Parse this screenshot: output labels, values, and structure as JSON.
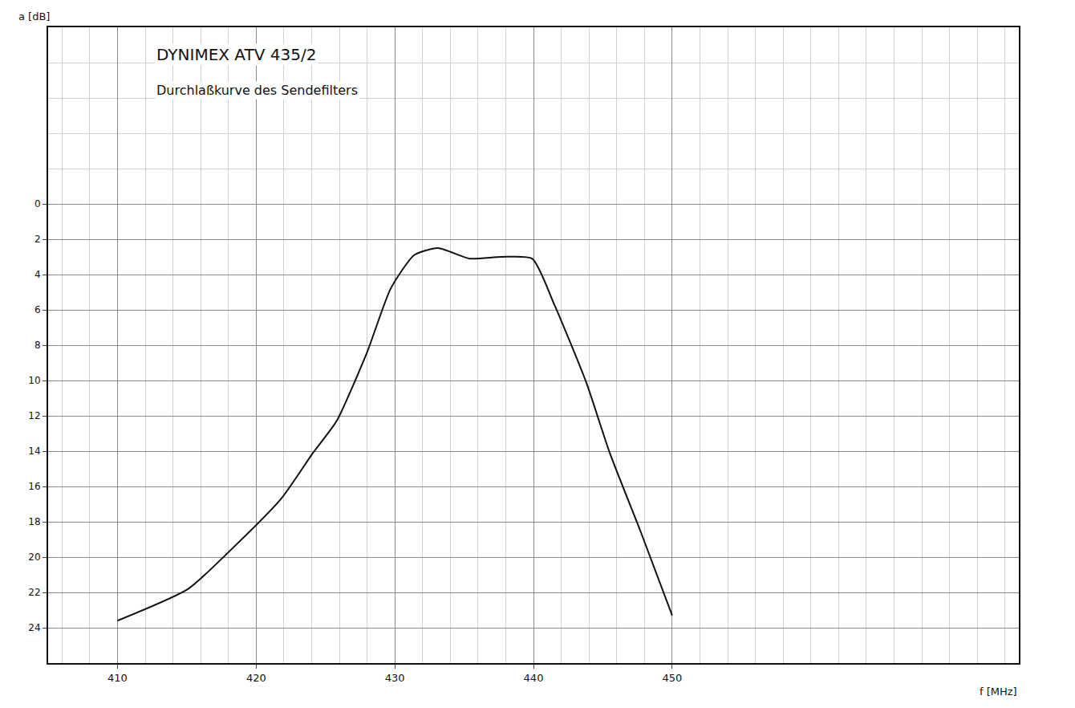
{
  "chart_data": {
    "type": "line",
    "title": "DYNIMEX ATV 435/2",
    "subtitle": "Durchlaßkurve des Sendefilters",
    "x_label": "f [MHz]",
    "y_label": "a [dB]",
    "x": [
      410,
      415.1,
      417.9,
      421.8,
      424.1,
      425.8,
      428.0,
      429.7,
      431.4,
      433.1,
      435.4,
      437.7,
      439.9,
      441.5,
      443.8,
      445.5,
      447.7,
      450.0
    ],
    "values": [
      23.6,
      21.8,
      19.8,
      16.7,
      14.1,
      12.3,
      8.4,
      4.8,
      2.9,
      2.5,
      3.1,
      3.0,
      3.1,
      5.7,
      10.1,
      14.1,
      18.5,
      23.3
    ],
    "color": "#111111",
    "xlim": [
      405,
      475
    ],
    "xticks": [
      410,
      420,
      430,
      440,
      450
    ],
    "ylim": [
      26,
      -10
    ],
    "yticks": [
      0,
      2,
      4,
      6,
      8,
      10,
      12,
      14,
      16,
      18,
      20,
      22,
      24
    ],
    "grid": true
  }
}
